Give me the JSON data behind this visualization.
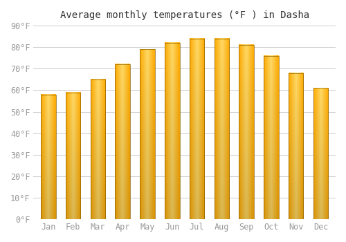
{
  "title": "Average monthly temperatures (°F ) in Dasha",
  "months": [
    "Jan",
    "Feb",
    "Mar",
    "Apr",
    "May",
    "Jun",
    "Jul",
    "Aug",
    "Sep",
    "Oct",
    "Nov",
    "Dec"
  ],
  "values": [
    58,
    59,
    65,
    72,
    79,
    82,
    84,
    84,
    81,
    76,
    68,
    61
  ],
  "bar_color_light": "#FFD966",
  "bar_color_mid": "#FFAA00",
  "bar_color_dark": "#E07800",
  "bar_edge_color": "#8B6000",
  "ylim": [
    0,
    90
  ],
  "yticks": [
    0,
    10,
    20,
    30,
    40,
    50,
    60,
    70,
    80,
    90
  ],
  "ytick_labels": [
    "0°F",
    "10°F",
    "20°F",
    "30°F",
    "40°F",
    "50°F",
    "60°F",
    "70°F",
    "80°F",
    "90°F"
  ],
  "background_color": "#ffffff",
  "grid_color": "#cccccc",
  "title_fontsize": 10,
  "tick_fontsize": 8.5,
  "bar_width": 0.6
}
